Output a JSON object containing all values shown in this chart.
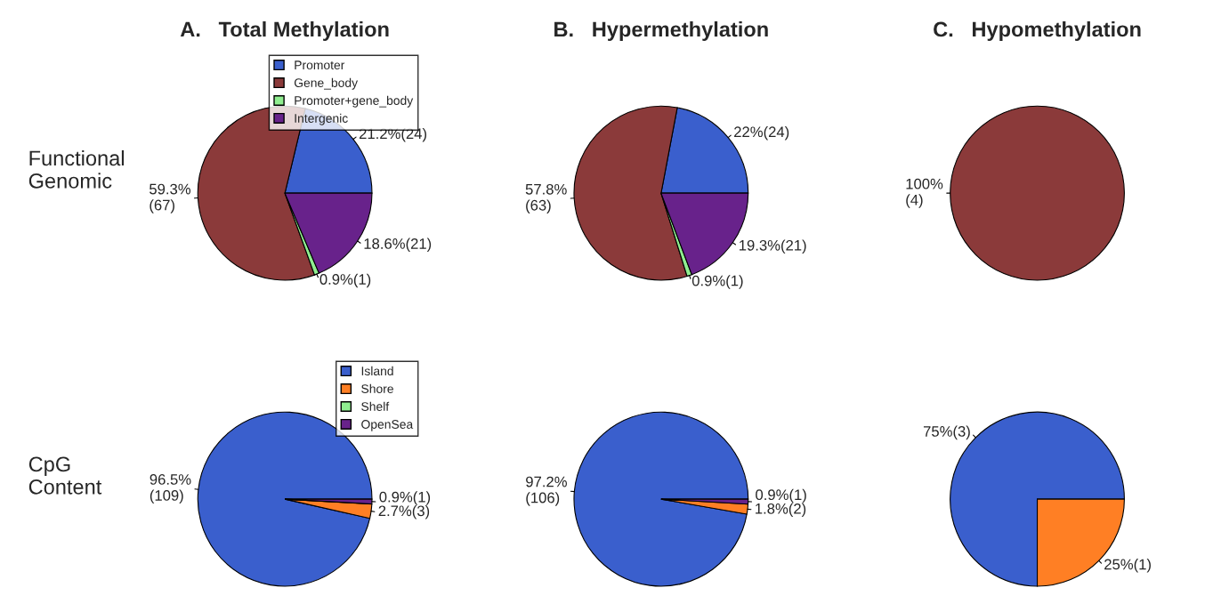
{
  "chart_data": [
    {
      "type": "pie",
      "title": "A.   Total Methylation",
      "ylabel": "Functional\nGenomic",
      "categories": [
        "Promoter",
        "Gene_body",
        "Promoter+gene_body",
        "Intergenic"
      ],
      "values": [
        24,
        67,
        1,
        21
      ],
      "colors": [
        "#3a5fcd",
        "#8b3a3a",
        "#90ee90",
        "#68228b"
      ],
      "value_labels": [
        "21.2%(24)",
        "59.3%\n(67)",
        "0.9%(1)",
        "18.6%(21)"
      ],
      "legend": "top right"
    },
    {
      "type": "pie",
      "title": "B.   Hypermethylation",
      "categories": [
        null,
        null,
        null,
        null
      ],
      "values": [
        24,
        63,
        1,
        21
      ],
      "colors": [
        "#3a5fcd",
        "#8b3a3a",
        "#90ee90",
        "#68228b"
      ],
      "value_labels": [
        "22%(24)",
        "57.8%\n(63)",
        "0.9%(1)",
        "19.3%(21)"
      ]
    },
    {
      "type": "pie",
      "title": "C.   Hypomethylation",
      "categories": [
        null
      ],
      "values": [
        4
      ],
      "colors": [
        "#8b3a3a"
      ],
      "value_labels": [
        "100%\n(4)"
      ]
    },
    {
      "type": "pie",
      "ylabel": "CpG\nContent",
      "categories": [
        "Island",
        "Shore",
        "Shelf",
        "OpenSea"
      ],
      "values": [
        109,
        3,
        0,
        1
      ],
      "colors": [
        "#3a5fcd",
        "#ff7f24",
        "#90ee90",
        "#68228b"
      ],
      "value_labels": [
        "96.5%\n(109)",
        "2.7%(3)",
        null,
        "0.9%(1)"
      ],
      "legend": "top right"
    },
    {
      "type": "pie",
      "categories": [
        null,
        null,
        null
      ],
      "values": [
        106,
        2,
        1
      ],
      "colors": [
        "#3a5fcd",
        "#ff7f24",
        "#68228b"
      ],
      "value_labels": [
        "97.2%\n(106)",
        "1.8%(2)",
        "0.9%(1)"
      ]
    },
    {
      "type": "pie",
      "categories": [
        null,
        null
      ],
      "values": [
        3,
        1
      ],
      "colors": [
        "#3a5fcd",
        "#ff7f24"
      ],
      "value_labels": [
        "75%(3)",
        "25%(1)"
      ]
    }
  ]
}
